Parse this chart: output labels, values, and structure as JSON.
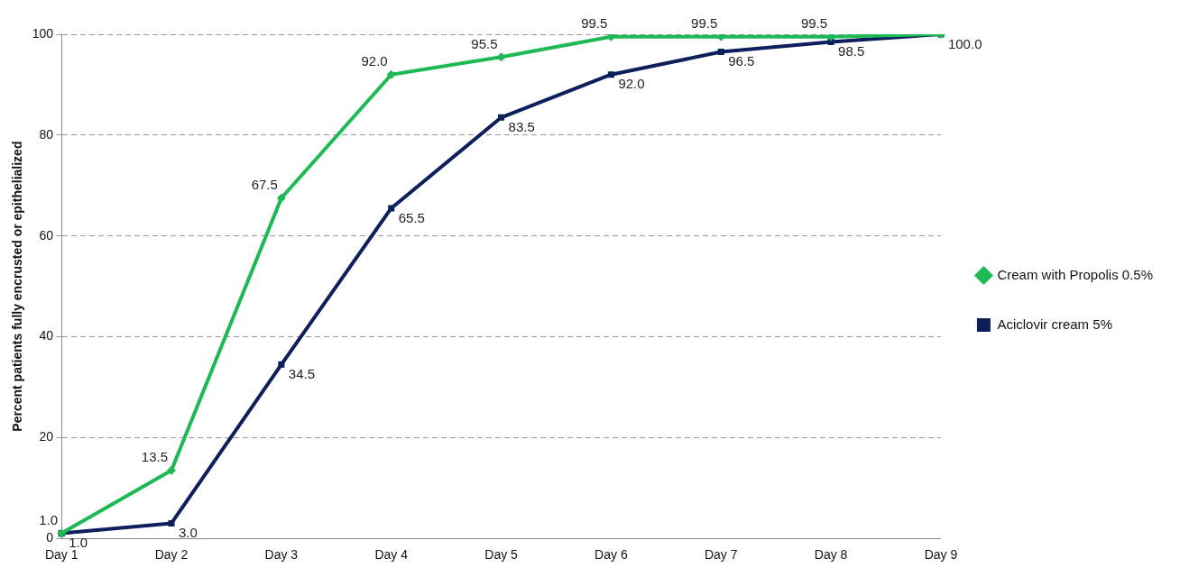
{
  "chart_data": {
    "type": "line",
    "ylabel": "Percent patients fully encrusted or epithelialized",
    "categories": [
      "Day 1",
      "Day 2",
      "Day 3",
      "Day 4",
      "Day 5",
      "Day 6",
      "Day 7",
      "Day 8",
      "Day 9"
    ],
    "series": [
      {
        "name": "Cream with Propolis 0.5%",
        "color": "#1db954",
        "marker": "diamond",
        "values": [
          1.0,
          13.5,
          67.5,
          92.0,
          95.5,
          99.5,
          99.5,
          99.5,
          100.0
        ],
        "value_labels": [
          "1.0",
          "13.5",
          "67.5",
          "92.0",
          "95.5",
          "99.5",
          "99.5",
          "99.5",
          null
        ]
      },
      {
        "name": "Aciclovir cream 5%",
        "color": "#0d1f5c",
        "marker": "square",
        "values": [
          1.0,
          3.0,
          34.5,
          65.5,
          83.5,
          92.0,
          96.5,
          98.5,
          100.0
        ],
        "value_labels": [
          "1.0",
          "3.0",
          "34.5",
          "65.5",
          "83.5",
          "92.0",
          "96.5",
          "98.5",
          "100.0"
        ]
      }
    ],
    "ylim": [
      0,
      100
    ],
    "yticks": [
      0,
      20,
      40,
      60,
      80,
      100
    ],
    "grid": "y",
    "legend": "right",
    "line_style": "solid"
  }
}
